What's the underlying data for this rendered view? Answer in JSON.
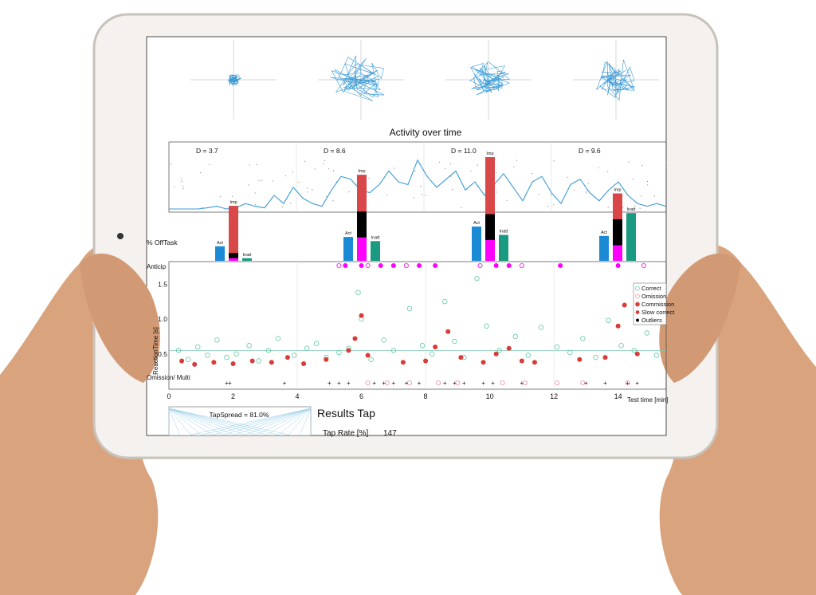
{
  "colors": {
    "trace": "#3a9bd6",
    "impulsive": "#d94848",
    "black_segment": "#000000",
    "magenta": "#ff00ff",
    "active": "#1a8ad4",
    "inattentive": "#1a9a80",
    "correct": "#5ec8a6",
    "omission": "#f08a9a",
    "commission": "#d93a3a",
    "skin": "#d9a37d",
    "frame": "#c8c2ba"
  },
  "activity": {
    "title": "Activity over time",
    "segments": [
      {
        "label": "D = 3.7"
      },
      {
        "label": "D = 8.6"
      },
      {
        "label": "D = 11.0"
      },
      {
        "label": "D = 9.6"
      }
    ]
  },
  "offtask": {
    "ylabel": "% OffTask",
    "bar_labels": {
      "act": "Act",
      "imp": "Imp",
      "inatt": "Inatt"
    },
    "groups": [
      {
        "act": 0.28,
        "imp_total": 1.06,
        "imp_black": 0.1,
        "imp_magenta": 0.05,
        "inatt": 0.05
      },
      {
        "act": 0.46,
        "imp_total": 1.66,
        "imp_black": 0.5,
        "imp_magenta": 0.45,
        "inatt": 0.38
      },
      {
        "act": 0.66,
        "imp_total": 2.0,
        "imp_black": 0.5,
        "imp_magenta": 0.4,
        "inatt": 0.5
      },
      {
        "act": 0.48,
        "imp_total": 1.3,
        "imp_black": 0.5,
        "imp_magenta": 0.3,
        "inatt": 0.92
      }
    ]
  },
  "reaction": {
    "ylabel": "ReactionTime [s]",
    "anticip_label": "Anticip",
    "omission_label": "Omission/ Multi",
    "legend": [
      "Correct",
      "Omission",
      "Commission",
      "Slow correct",
      "Outliers"
    ],
    "ytick_labels": [
      "0.5",
      "1.0",
      "1.5"
    ],
    "xtick_labels": [
      "0",
      "2",
      "4",
      "6",
      "8",
      "10",
      "12",
      "14"
    ],
    "xlabel": "Test time [min]"
  },
  "tap": {
    "spread_label": "TapSpread = 81.0%",
    "results_title": "Results Tap",
    "rate_label": "Tap Rate [%]",
    "rate_value": "147"
  },
  "chart_data": {
    "type": "scatter",
    "title": "Activity over time",
    "activity_d_values": [
      3.7,
      8.6,
      11.0,
      9.6
    ],
    "offtask_bars": {
      "series": [
        {
          "name": "Act",
          "values": [
            0.28,
            0.46,
            0.66,
            0.48
          ]
        },
        {
          "name": "Imp",
          "values": [
            1.06,
            1.66,
            2.0,
            1.3
          ]
        },
        {
          "name": "Inatt",
          "values": [
            0.05,
            0.38,
            0.5,
            0.92
          ]
        }
      ]
    },
    "reaction_time": {
      "xlabel": "Test time [min]",
      "ylabel": "ReactionTime [s]",
      "xlim": [
        0,
        15.5
      ],
      "ylim": [
        0.2,
        1.8
      ],
      "xticks": [
        0,
        2,
        4,
        6,
        8,
        10,
        12,
        14
      ],
      "yticks": [
        0.5,
        1.0,
        1.5
      ],
      "legend_position": "right",
      "series": [
        {
          "name": "Correct",
          "points": [
            [
              0.3,
              0.55
            ],
            [
              0.6,
              0.42
            ],
            [
              0.9,
              0.6
            ],
            [
              1.2,
              0.48
            ],
            [
              1.5,
              0.7
            ],
            [
              1.8,
              0.45
            ],
            [
              2.1,
              0.5
            ],
            [
              2.5,
              0.62
            ],
            [
              2.8,
              0.4
            ],
            [
              3.1,
              0.55
            ],
            [
              3.4,
              0.72
            ],
            [
              3.9,
              0.48
            ],
            [
              4.3,
              0.58
            ],
            [
              4.6,
              0.65
            ],
            [
              4.9,
              0.45
            ],
            [
              5.3,
              0.52
            ],
            [
              5.6,
              0.58
            ],
            [
              5.9,
              1.38
            ],
            [
              6.0,
              1.0
            ],
            [
              6.3,
              0.42
            ],
            [
              6.7,
              0.7
            ],
            [
              7.0,
              0.55
            ],
            [
              7.5,
              1.15
            ],
            [
              7.9,
              0.62
            ],
            [
              8.2,
              0.5
            ],
            [
              8.6,
              1.25
            ],
            [
              8.9,
              0.68
            ],
            [
              9.2,
              0.45
            ],
            [
              9.6,
              1.58
            ],
            [
              9.9,
              0.9
            ],
            [
              10.3,
              0.55
            ],
            [
              10.8,
              0.75
            ],
            [
              11.2,
              0.48
            ],
            [
              11.6,
              0.88
            ],
            [
              12.1,
              0.6
            ],
            [
              12.5,
              0.52
            ],
            [
              12.9,
              0.72
            ],
            [
              13.3,
              0.45
            ],
            [
              13.7,
              0.98
            ],
            [
              14.1,
              0.62
            ],
            [
              14.5,
              0.55
            ],
            [
              14.9,
              0.8
            ],
            [
              15.2,
              0.48
            ]
          ]
        },
        {
          "name": "Commission",
          "points": [
            [
              0.4,
              0.4
            ],
            [
              0.8,
              0.35
            ],
            [
              1.4,
              0.38
            ],
            [
              2.0,
              0.36
            ],
            [
              2.6,
              0.4
            ],
            [
              3.2,
              0.38
            ],
            [
              3.7,
              0.45
            ],
            [
              4.2,
              0.36
            ],
            [
              4.9,
              0.42
            ],
            [
              5.6,
              0.55
            ],
            [
              5.8,
              0.72
            ],
            [
              6.0,
              1.05
            ],
            [
              6.2,
              0.48
            ],
            [
              7.3,
              0.38
            ],
            [
              8.0,
              0.4
            ],
            [
              8.3,
              0.6
            ],
            [
              8.7,
              0.82
            ],
            [
              9.1,
              0.45
            ],
            [
              9.8,
              0.38
            ],
            [
              10.2,
              0.5
            ],
            [
              10.6,
              0.58
            ],
            [
              11.0,
              0.4
            ],
            [
              11.4,
              0.38
            ],
            [
              12.8,
              0.42
            ],
            [
              13.6,
              0.45
            ],
            [
              14.0,
              0.9
            ],
            [
              14.2,
              1.2
            ],
            [
              14.6,
              0.5
            ]
          ]
        },
        {
          "name": "Omission",
          "points": [
            [
              6.2,
              0.05
            ],
            [
              6.8,
              0.05
            ],
            [
              7.5,
              0.05
            ],
            [
              8.4,
              0.05
            ],
            [
              9.0,
              0.05
            ],
            [
              10.4,
              0.05
            ],
            [
              11.1,
              0.05
            ],
            [
              12.1,
              0.05
            ],
            [
              12.9,
              0.05
            ],
            [
              14.3,
              0.05
            ]
          ]
        }
      ]
    },
    "tap_spread_percent": 81.0,
    "tap_rate_percent": 147
  }
}
